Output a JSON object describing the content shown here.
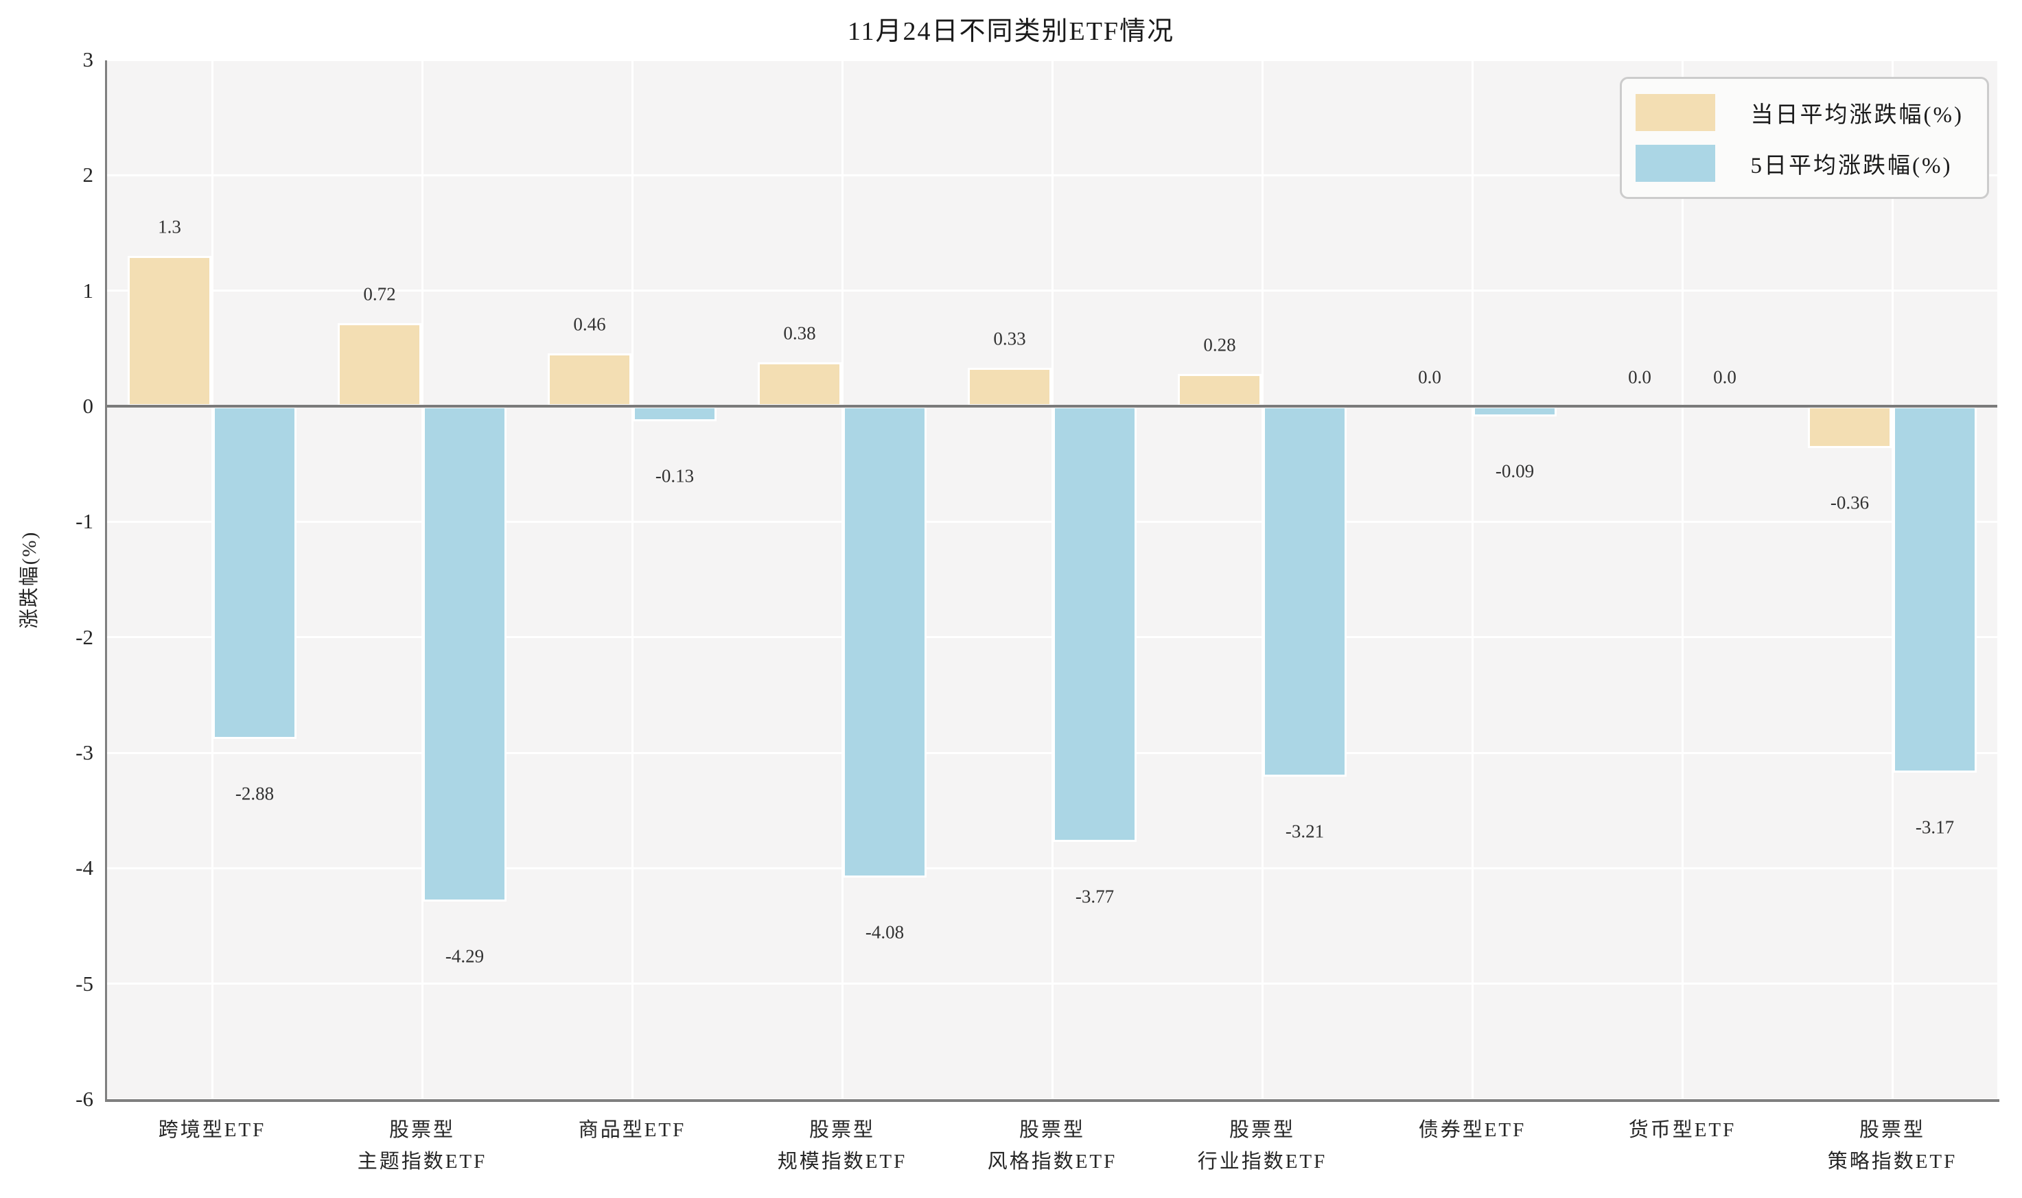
{
  "chart_data": {
    "type": "bar",
    "title": "11月24日不同类别ETF情况",
    "ylabel": "涨跌幅(%)",
    "xlabel": "",
    "ylim": [
      -6,
      3
    ],
    "yticks": [
      "3",
      "2",
      "1",
      "0",
      "-1",
      "-2",
      "-3",
      "-4",
      "-5",
      "-6"
    ],
    "grid": true,
    "legend_position": "upper right",
    "categories": [
      "跨境型ETF",
      "股票型\n主题指数ETF",
      "商品型ETF",
      "股票型\n规模指数ETF",
      "股票型\n风格指数ETF",
      "股票型\n行业指数ETF",
      "债券型ETF",
      "货币型ETF",
      "股票型\n策略指数ETF"
    ],
    "series": [
      {
        "name": "当日平均涨跌幅(%)",
        "color": "#f3deb3",
        "values": [
          1.3,
          0.72,
          0.46,
          0.38,
          0.33,
          0.28,
          0.0,
          0.0,
          -0.36
        ],
        "labels": [
          "1.3",
          "0.72",
          "0.46",
          "0.38",
          "0.33",
          "0.28",
          "0.0",
          "0.0",
          "-0.36"
        ]
      },
      {
        "name": "5日平均涨跌幅(%)",
        "color": "#abd6e5",
        "values": [
          -2.88,
          -4.29,
          -0.13,
          -4.08,
          -3.77,
          -3.21,
          -0.09,
          0.0,
          -3.17
        ],
        "labels": [
          "-2.88",
          "-4.29",
          "-0.13",
          "-4.08",
          "-3.77",
          "-3.21",
          "-0.09",
          "0.0",
          "-3.17"
        ]
      }
    ],
    "colors": {
      "plot_background": "#f5f4f4",
      "grid_line": "#ffffff",
      "axis_line": "#7f7f7f",
      "text": "#262626"
    }
  }
}
